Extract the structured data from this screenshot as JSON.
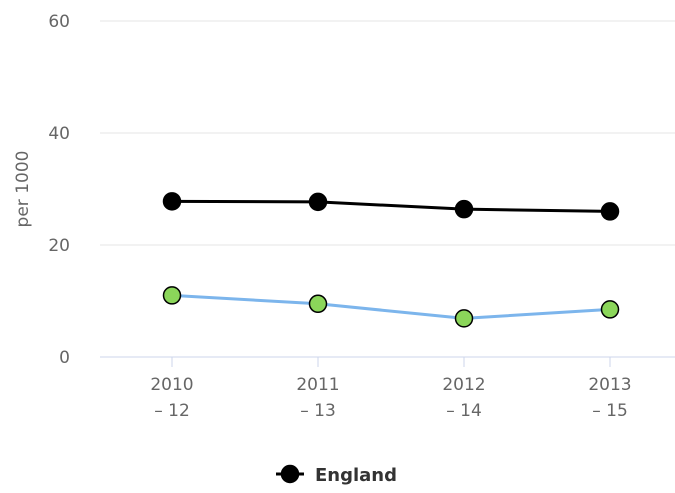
{
  "chart_data": {
    "type": "line",
    "title": "",
    "xlabel": "",
    "ylabel": "per 1000",
    "ylim": [
      0,
      60
    ],
    "y_ticks": [
      0,
      20,
      40,
      60
    ],
    "grid": true,
    "legend_position": "bottom-center",
    "categories": [
      [
        "2010",
        "– 12"
      ],
      [
        "2011",
        "– 13"
      ],
      [
        "2012",
        "– 14"
      ],
      [
        "2013",
        "– 15"
      ]
    ],
    "series": [
      {
        "name": "England",
        "values": [
          27.8,
          27.7,
          26.4,
          26.0
        ],
        "line_color": "#000000",
        "marker_fill": "#000000",
        "in_legend": true
      },
      {
        "name": "",
        "values": [
          11.0,
          9.5,
          6.9,
          8.5
        ],
        "line_color": "#7cb5ec",
        "marker_fill": "#8bd65a",
        "in_legend": false
      }
    ],
    "colors": {
      "grid": "#e6e6e6",
      "axis_line": "#ccd6eb",
      "tick_text": "#666666",
      "legend_text": "#333333"
    }
  }
}
